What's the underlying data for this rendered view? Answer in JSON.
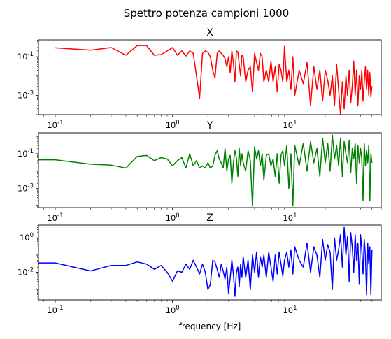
{
  "figure": {
    "suptitle": "Spettro potenza campioni 1000"
  },
  "chart_data": [
    {
      "type": "line",
      "title": "X",
      "xlabel": "",
      "ylabel": "",
      "xscale": "log",
      "yscale": "log",
      "xlim": [
        0.072,
        60
      ],
      "ylim": [
        0.0001,
        0.75
      ],
      "xticks": [
        {
          "value": 0.1,
          "label": "10^-1"
        },
        {
          "value": 1,
          "label": "10^0"
        },
        {
          "value": 10,
          "label": "10^1"
        }
      ],
      "yticks": [
        {
          "value": 0.001,
          "label": "10^-3"
        },
        {
          "value": 0.1,
          "label": "10^-1"
        }
      ],
      "grid": false,
      "series": [
        {
          "color": "#ff0000",
          "x": [
            0.1,
            0.2,
            0.3,
            0.4,
            0.5,
            0.6,
            0.7,
            0.8,
            0.9,
            1.0,
            1.1,
            1.2,
            1.3,
            1.4,
            1.5,
            1.6,
            1.7,
            1.8,
            1.9,
            2.0,
            2.1,
            2.2,
            2.3,
            2.4,
            2.5,
            2.6,
            2.7,
            2.8,
            2.9,
            3.0,
            3.1,
            3.2,
            3.3,
            3.4,
            3.5,
            3.6,
            3.7,
            3.8,
            3.9,
            4.0,
            4.2,
            4.4,
            4.6,
            4.8,
            5.0,
            5.2,
            5.4,
            5.6,
            5.8,
            6.0,
            6.3,
            6.6,
            6.9,
            7.2,
            7.5,
            7.8,
            8.1,
            8.4,
            8.7,
            9.0,
            9.4,
            9.8,
            10.2,
            10.6,
            11,
            12,
            13,
            14,
            15,
            16,
            17,
            18,
            19,
            20,
            21,
            22,
            23,
            24,
            25,
            26,
            27,
            28,
            29,
            30,
            31,
            32,
            33,
            34,
            35,
            36,
            37,
            38,
            39,
            40,
            41,
            42,
            43,
            44,
            45,
            46,
            47,
            48,
            49,
            50
          ],
          "values": [
            0.29,
            0.22,
            0.3,
            0.12,
            0.38,
            0.38,
            0.12,
            0.13,
            0.2,
            0.3,
            0.12,
            0.2,
            0.11,
            0.2,
            0.15,
            0.01,
            0.0007,
            0.15,
            0.2,
            0.17,
            0.1,
            0.02,
            0.008,
            0.15,
            0.2,
            0.15,
            0.12,
            0.08,
            0.03,
            0.1,
            0.015,
            0.2,
            0.05,
            0.005,
            0.2,
            0.18,
            0.04,
            0.01,
            0.12,
            0.1,
            0.005,
            0.02,
            0.03,
            0.0015,
            0.15,
            0.05,
            0.02,
            0.15,
            0.1,
            0.005,
            0.02,
            0.005,
            0.06,
            0.005,
            0.03,
            0.0015,
            0.04,
            0.02,
            0.005,
            0.35,
            0.005,
            0.02,
            0.002,
            0.1,
            0.001,
            0.02,
            0.004,
            0.05,
            0.0003,
            0.03,
            0.002,
            0.02,
            0.0005,
            0.02,
            0.006,
            0.001,
            0.01,
            0.0003,
            0.04,
            0.002,
            0.0001,
            0.005,
            0.0002,
            0.01,
            0.001,
            0.02,
            0.0004,
            0.003,
            0.06,
            0.001,
            0.02,
            0.0003,
            0.01,
            0.002,
            0.02,
            0.0005,
            0.005,
            0.03,
            0.002,
            0.02,
            0.001,
            0.015,
            0.0008,
            0.003
          ]
        }
      ]
    },
    {
      "type": "line",
      "title": "Y",
      "xlabel": "",
      "ylabel": "",
      "xscale": "log",
      "yscale": "log",
      "xlim": [
        0.072,
        60
      ],
      "ylim": [
        8e-05,
        1.6
      ],
      "xticks": [
        {
          "value": 0.1,
          "label": "10^-1"
        },
        {
          "value": 1,
          "label": "10^0"
        },
        {
          "value": 10,
          "label": "10^1"
        }
      ],
      "yticks": [
        {
          "value": 0.001,
          "label": "10^-3"
        },
        {
          "value": 0.1,
          "label": "10^-1"
        }
      ],
      "grid": false,
      "series": [
        {
          "color": "#008000",
          "x": [
            0.07,
            0.1,
            0.2,
            0.3,
            0.4,
            0.5,
            0.6,
            0.7,
            0.8,
            0.9,
            1.0,
            1.1,
            1.2,
            1.3,
            1.4,
            1.5,
            1.6,
            1.7,
            1.8,
            1.9,
            2.0,
            2.1,
            2.2,
            2.3,
            2.4,
            2.5,
            2.6,
            2.7,
            2.8,
            2.9,
            3.0,
            3.1,
            3.2,
            3.3,
            3.4,
            3.5,
            3.6,
            3.7,
            3.8,
            3.9,
            4.0,
            4.2,
            4.4,
            4.6,
            4.8,
            5.0,
            5.2,
            5.4,
            5.6,
            5.8,
            6.0,
            6.3,
            6.6,
            6.9,
            7.2,
            7.5,
            7.8,
            8.1,
            8.4,
            8.7,
            9.0,
            9.4,
            9.8,
            10.2,
            10.6,
            11,
            12,
            13,
            14,
            15,
            16,
            17,
            18,
            19,
            20,
            21,
            22,
            23,
            24,
            25,
            26,
            27,
            28,
            29,
            30,
            31,
            32,
            33,
            34,
            35,
            36,
            37,
            38,
            39,
            40,
            41,
            42,
            43,
            44,
            45,
            46,
            47,
            48,
            49,
            50
          ],
          "values": [
            0.045,
            0.045,
            0.025,
            0.022,
            0.015,
            0.07,
            0.08,
            0.04,
            0.06,
            0.05,
            0.02,
            0.04,
            0.06,
            0.015,
            0.1,
            0.02,
            0.04,
            0.015,
            0.02,
            0.015,
            0.03,
            0.015,
            0.02,
            0.08,
            0.15,
            0.05,
            0.03,
            0.015,
            0.2,
            0.01,
            0.05,
            0.08,
            0.002,
            0.03,
            0.15,
            0.06,
            0.005,
            0.2,
            0.02,
            0.1,
            0.03,
            0.01,
            0.15,
            0.04,
            0.0001,
            0.25,
            0.05,
            0.15,
            0.02,
            0.1,
            0.003,
            0.08,
            0.1,
            0.02,
            0.05,
            0.005,
            0.1,
            0.002,
            0.08,
            0.15,
            0.02,
            0.3,
            0.001,
            0.1,
            0.0001,
            0.3,
            0.02,
            0.4,
            0.01,
            0.5,
            0.03,
            0.2,
            0.005,
            0.8,
            0.03,
            0.4,
            0.01,
            1.2,
            0.05,
            0.3,
            0.02,
            0.8,
            0.005,
            0.5,
            0.1,
            0.03,
            0.6,
            0.008,
            0.2,
            0.05,
            0.4,
            0.002,
            0.3,
            0.03,
            0.2,
            0.05,
            0.0002,
            0.4,
            0.02,
            0.15,
            0.03,
            0.3,
            0.0002,
            0.1,
            0.03
          ]
        }
      ]
    },
    {
      "type": "line",
      "title": "Z",
      "xlabel": "frequency [Hz]",
      "ylabel": "",
      "xscale": "log",
      "yscale": "log",
      "xlim": [
        0.072,
        60
      ],
      "ylim": [
        0.00025,
        5.5
      ],
      "xticks": [
        {
          "value": 0.1,
          "label": "10^-1"
        },
        {
          "value": 1,
          "label": "10^0"
        },
        {
          "value": 10,
          "label": "10^1"
        }
      ],
      "yticks": [
        {
          "value": 0.01,
          "label": "10^-2"
        },
        {
          "value": 1,
          "label": "10^0"
        }
      ],
      "grid": false,
      "series": [
        {
          "color": "#0000ff",
          "x": [
            0.07,
            0.1,
            0.2,
            0.3,
            0.4,
            0.5,
            0.6,
            0.7,
            0.8,
            0.9,
            1.0,
            1.1,
            1.2,
            1.3,
            1.4,
            1.5,
            1.6,
            1.7,
            1.8,
            1.9,
            2.0,
            2.1,
            2.2,
            2.3,
            2.4,
            2.5,
            2.6,
            2.7,
            2.8,
            2.9,
            3.0,
            3.1,
            3.2,
            3.3,
            3.4,
            3.5,
            3.6,
            3.7,
            3.8,
            3.9,
            4.0,
            4.2,
            4.4,
            4.6,
            4.8,
            5.0,
            5.2,
            5.4,
            5.6,
            5.8,
            6.0,
            6.3,
            6.6,
            6.9,
            7.2,
            7.5,
            7.8,
            8.1,
            8.4,
            8.7,
            9.0,
            9.4,
            9.8,
            10.2,
            10.6,
            11,
            12,
            13,
            14,
            15,
            16,
            17,
            18,
            19,
            20,
            21,
            22,
            23,
            24,
            25,
            26,
            27,
            28,
            29,
            30,
            31,
            32,
            33,
            34,
            35,
            36,
            37,
            38,
            39,
            40,
            41,
            42,
            43,
            44,
            45,
            46,
            47,
            48,
            49,
            50
          ],
          "values": [
            0.035,
            0.035,
            0.012,
            0.025,
            0.025,
            0.04,
            0.03,
            0.015,
            0.025,
            0.01,
            0.003,
            0.012,
            0.01,
            0.03,
            0.015,
            0.05,
            0.02,
            0.008,
            0.03,
            0.01,
            0.001,
            0.002,
            0.05,
            0.04,
            0.015,
            0.005,
            0.03,
            0.012,
            0.004,
            0.02,
            0.0006,
            0.005,
            0.05,
            0.008,
            0.0004,
            0.01,
            0.02,
            0.0015,
            0.03,
            0.005,
            0.08,
            0.005,
            0.05,
            0.001,
            0.1,
            0.01,
            0.15,
            0.005,
            0.08,
            0.02,
            0.1,
            0.005,
            0.15,
            0.02,
            0.003,
            0.1,
            0.008,
            0.15,
            0.03,
            0.006,
            0.05,
            0.15,
            0.02,
            0.2,
            0.008,
            0.3,
            0.05,
            0.02,
            0.5,
            0.01,
            0.3,
            0.1,
            0.005,
            0.8,
            0.05,
            0.4,
            0.15,
            0.001,
            1.0,
            0.05,
            0.2,
            1.5,
            0.02,
            4.0,
            0.1,
            1.2,
            0.003,
            2.0,
            0.3,
            0.01,
            1.5,
            0.05,
            0.5,
            0.002,
            1.5,
            0.2,
            0.008,
            0.8,
            0.1,
            0.0005,
            0.5,
            0.03,
            0.3,
            0.0005,
            0.2
          ]
        }
      ]
    }
  ]
}
